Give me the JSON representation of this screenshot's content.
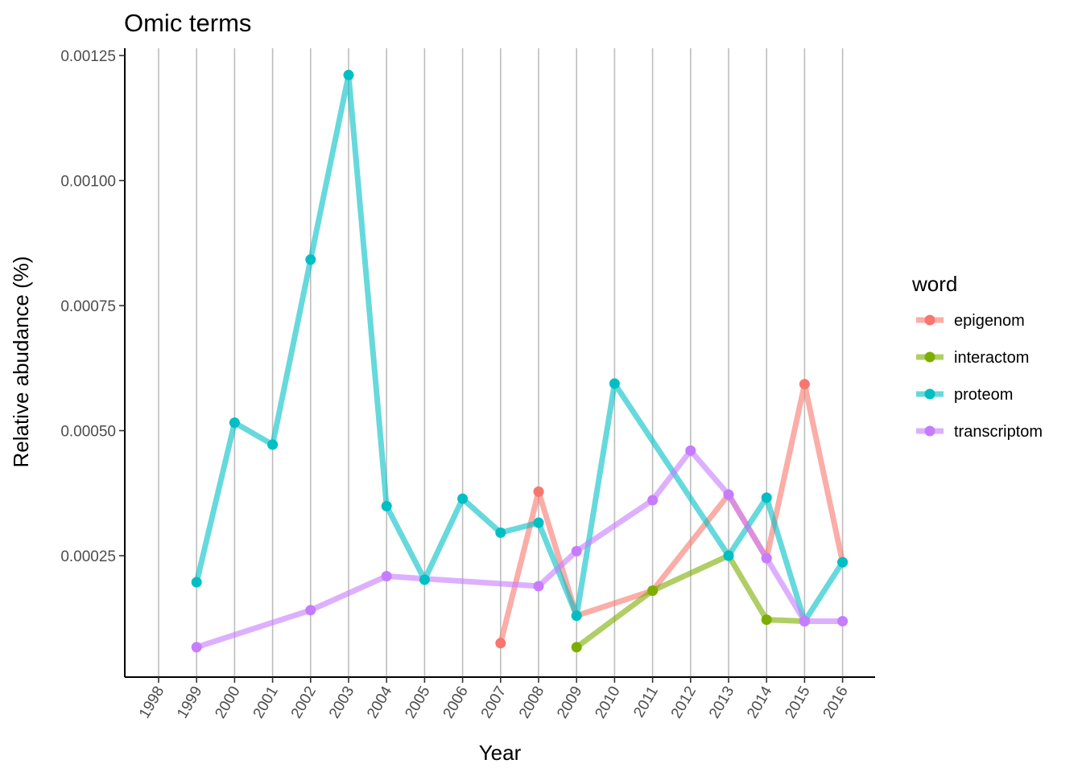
{
  "chart_data": {
    "type": "line",
    "title": "Omic terms",
    "xlabel": "Year",
    "ylabel": "Relative abudance (%)",
    "categories": [
      "1998",
      "1999",
      "2000",
      "2001",
      "2002",
      "2003",
      "2004",
      "2005",
      "2006",
      "2007",
      "2008",
      "2009",
      "2010",
      "2011",
      "2012",
      "2013",
      "2014",
      "2015",
      "2016"
    ],
    "yticks": [
      "0.00025",
      "0.00050",
      "0.00075",
      "0.00100",
      "0.00125"
    ],
    "ylim": [
      4e-05,
      0.00127
    ],
    "grid": "vertical",
    "legend": {
      "title": "word",
      "position": "right"
    },
    "series": [
      {
        "name": "epigenom",
        "color": "#F8766D",
        "points": [
          [
            "2007",
            7.5e-05
          ],
          [
            "2008",
            0.000378
          ],
          [
            "2009",
            0.00013
          ],
          [
            "2011",
            0.00018
          ],
          [
            "2013",
            0.000372
          ],
          [
            "2014",
            0.000245
          ],
          [
            "2015",
            0.000593
          ],
          [
            "2016",
            0.000237
          ]
        ]
      },
      {
        "name": "interactom",
        "color": "#7CAE00",
        "points": [
          [
            "2009",
            6.7e-05
          ],
          [
            "2011",
            0.00018
          ],
          [
            "2013",
            0.00025
          ],
          [
            "2014",
            0.000122
          ],
          [
            "2015",
            0.000119
          ]
        ]
      },
      {
        "name": "proteom",
        "color": "#00BFC4",
        "points": [
          [
            "1999",
            0.000197
          ],
          [
            "2000",
            0.000516
          ],
          [
            "2001",
            0.000472
          ],
          [
            "2002",
            0.000842
          ],
          [
            "2003",
            0.001211
          ],
          [
            "2004",
            0.000349
          ],
          [
            "2005",
            0.000202
          ],
          [
            "2006",
            0.000364
          ],
          [
            "2007",
            0.000296
          ],
          [
            "2008",
            0.000316
          ],
          [
            "2009",
            0.00013
          ],
          [
            "2010",
            0.000594
          ],
          [
            "2013",
            0.00025
          ],
          [
            "2014",
            0.000366
          ],
          [
            "2015",
            0.000119
          ],
          [
            "2016",
            0.000237
          ]
        ]
      },
      {
        "name": "transcriptom",
        "color": "#C77CFF",
        "points": [
          [
            "1999",
            6.7e-05
          ],
          [
            "2002",
            0.000141
          ],
          [
            "2004",
            0.000209
          ],
          [
            "2008",
            0.000189
          ],
          [
            "2009",
            0.000259
          ],
          [
            "2011",
            0.000361
          ],
          [
            "2012",
            0.00046
          ],
          [
            "2013",
            0.000372
          ],
          [
            "2014",
            0.000245
          ],
          [
            "2015",
            0.000119
          ],
          [
            "2016",
            0.000119
          ]
        ]
      }
    ]
  }
}
